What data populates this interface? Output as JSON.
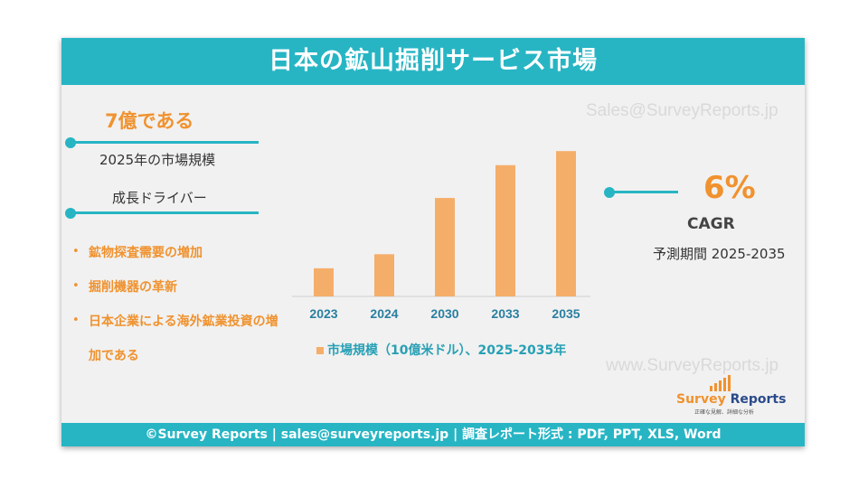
{
  "header": {
    "title": "日本の鉱山掘削サービス市場"
  },
  "watermarks": {
    "email": "Sales@SurveyReports.jp",
    "site": "www.SurveyReports.jp"
  },
  "left_panel": {
    "market_value": "7億である",
    "market_label": "2025年の市場規模",
    "drivers_heading": "成長ドライバー",
    "drivers": [
      "鉱物探査需要の増加",
      "掘削機器の革新",
      "日本企業による海外鉱業投資の増",
      "加である"
    ]
  },
  "right_panel": {
    "cagr_value": "6%",
    "cagr_label": "CAGR",
    "period": "予測期間 2025-2035"
  },
  "footer": {
    "text": "©Survey Reports | sales@surveyreports.jp |  調査レポート形式 : PDF, PPT, XLS, Word"
  },
  "logo": {
    "name_part1": "Survey",
    "name_part2": " Reports",
    "tagline": "正確な見解、詳細な分析"
  },
  "colors": {
    "accent": "#27b5c4",
    "orange": "#f0922e",
    "bar": "#f5ae6a"
  },
  "chart_data": {
    "type": "bar",
    "categories": [
      "2023",
      "2024",
      "2030",
      "2033",
      "2035"
    ],
    "series": [
      {
        "name": "市場規模（10億米ドル）、2025-2035年",
        "values": [
          0.6,
          0.9,
          2.1,
          2.8,
          3.1
        ]
      }
    ],
    "ylim": [
      0,
      3.2
    ],
    "legend": "bottom"
  }
}
